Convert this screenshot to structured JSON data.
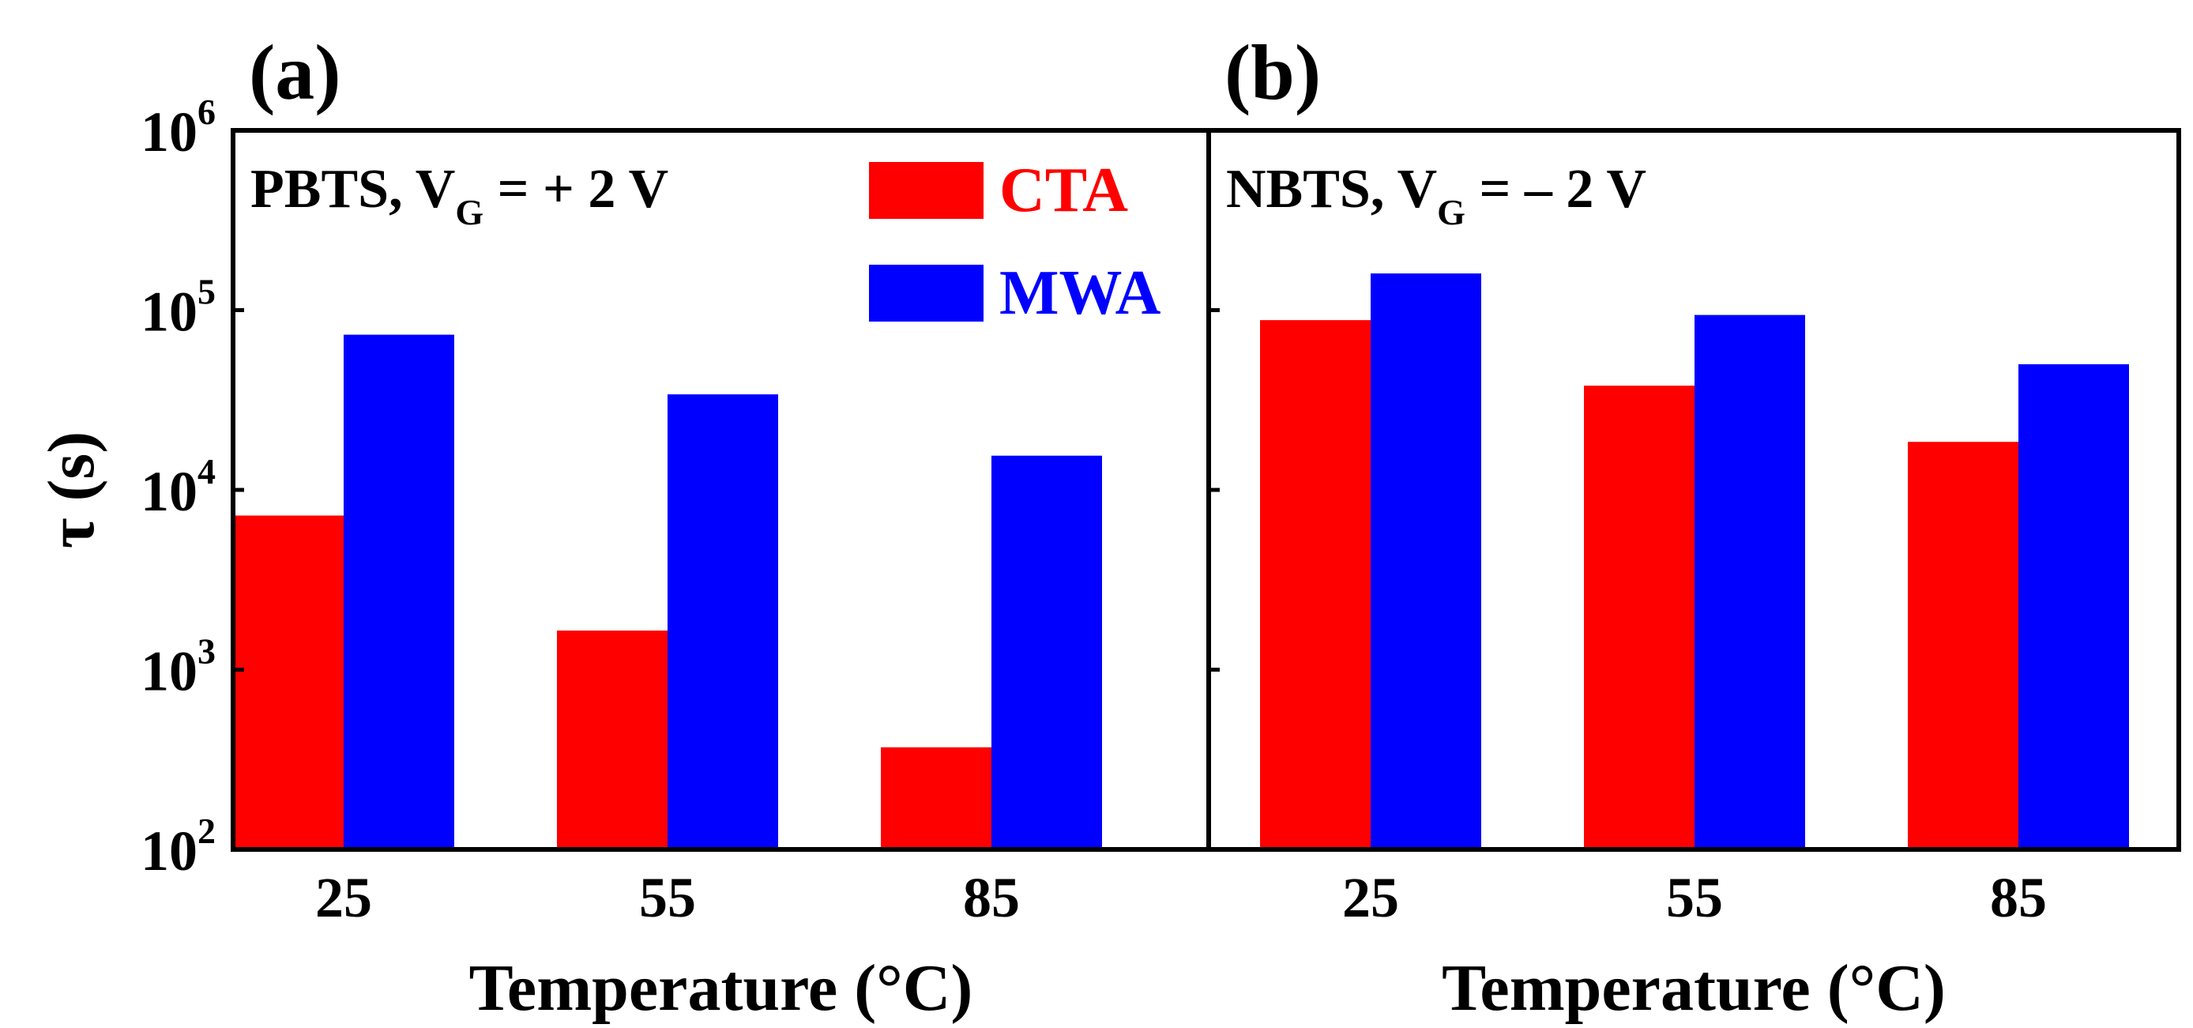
{
  "chart_data": [
    {
      "panel_label": "(a)",
      "type": "bar",
      "annotation_main": "PBTS, V",
      "annotation_sub": "G",
      "annotation_tail": " = + 2 V",
      "categories": [
        "25",
        "55",
        "85"
      ],
      "series": [
        {
          "name": "CTA",
          "color": "#ff0000",
          "values": [
            7200,
            1650,
            370
          ]
        },
        {
          "name": "MWA",
          "color": "#0000ff",
          "values": [
            73000,
            34000,
            15500
          ]
        }
      ],
      "xlabel": "Temperature (°C)",
      "ylabel": "τ (s)",
      "yscale": "log",
      "ylim": [
        100,
        1000000
      ],
      "ytick_exponents": [
        2,
        3,
        4,
        5,
        6
      ],
      "ytick_base": "10",
      "legend": [
        {
          "label": "CTA",
          "color": "#ff0000"
        },
        {
          "label": "MWA",
          "color": "#0000ff"
        }
      ],
      "legend_position": "top-right"
    },
    {
      "panel_label": "(b)",
      "type": "bar",
      "annotation_main": "NBTS, V",
      "annotation_sub": "G",
      "annotation_tail": " = – 2 V",
      "categories": [
        "25",
        "55",
        "85"
      ],
      "series": [
        {
          "name": "CTA",
          "color": "#ff0000",
          "values": [
            88000,
            38000,
            18500
          ]
        },
        {
          "name": "MWA",
          "color": "#0000ff",
          "values": [
            160000,
            94000,
            50000
          ]
        }
      ],
      "xlabel": "Temperature (°C)",
      "yscale": "log",
      "ylim": [
        100,
        1000000
      ]
    }
  ]
}
